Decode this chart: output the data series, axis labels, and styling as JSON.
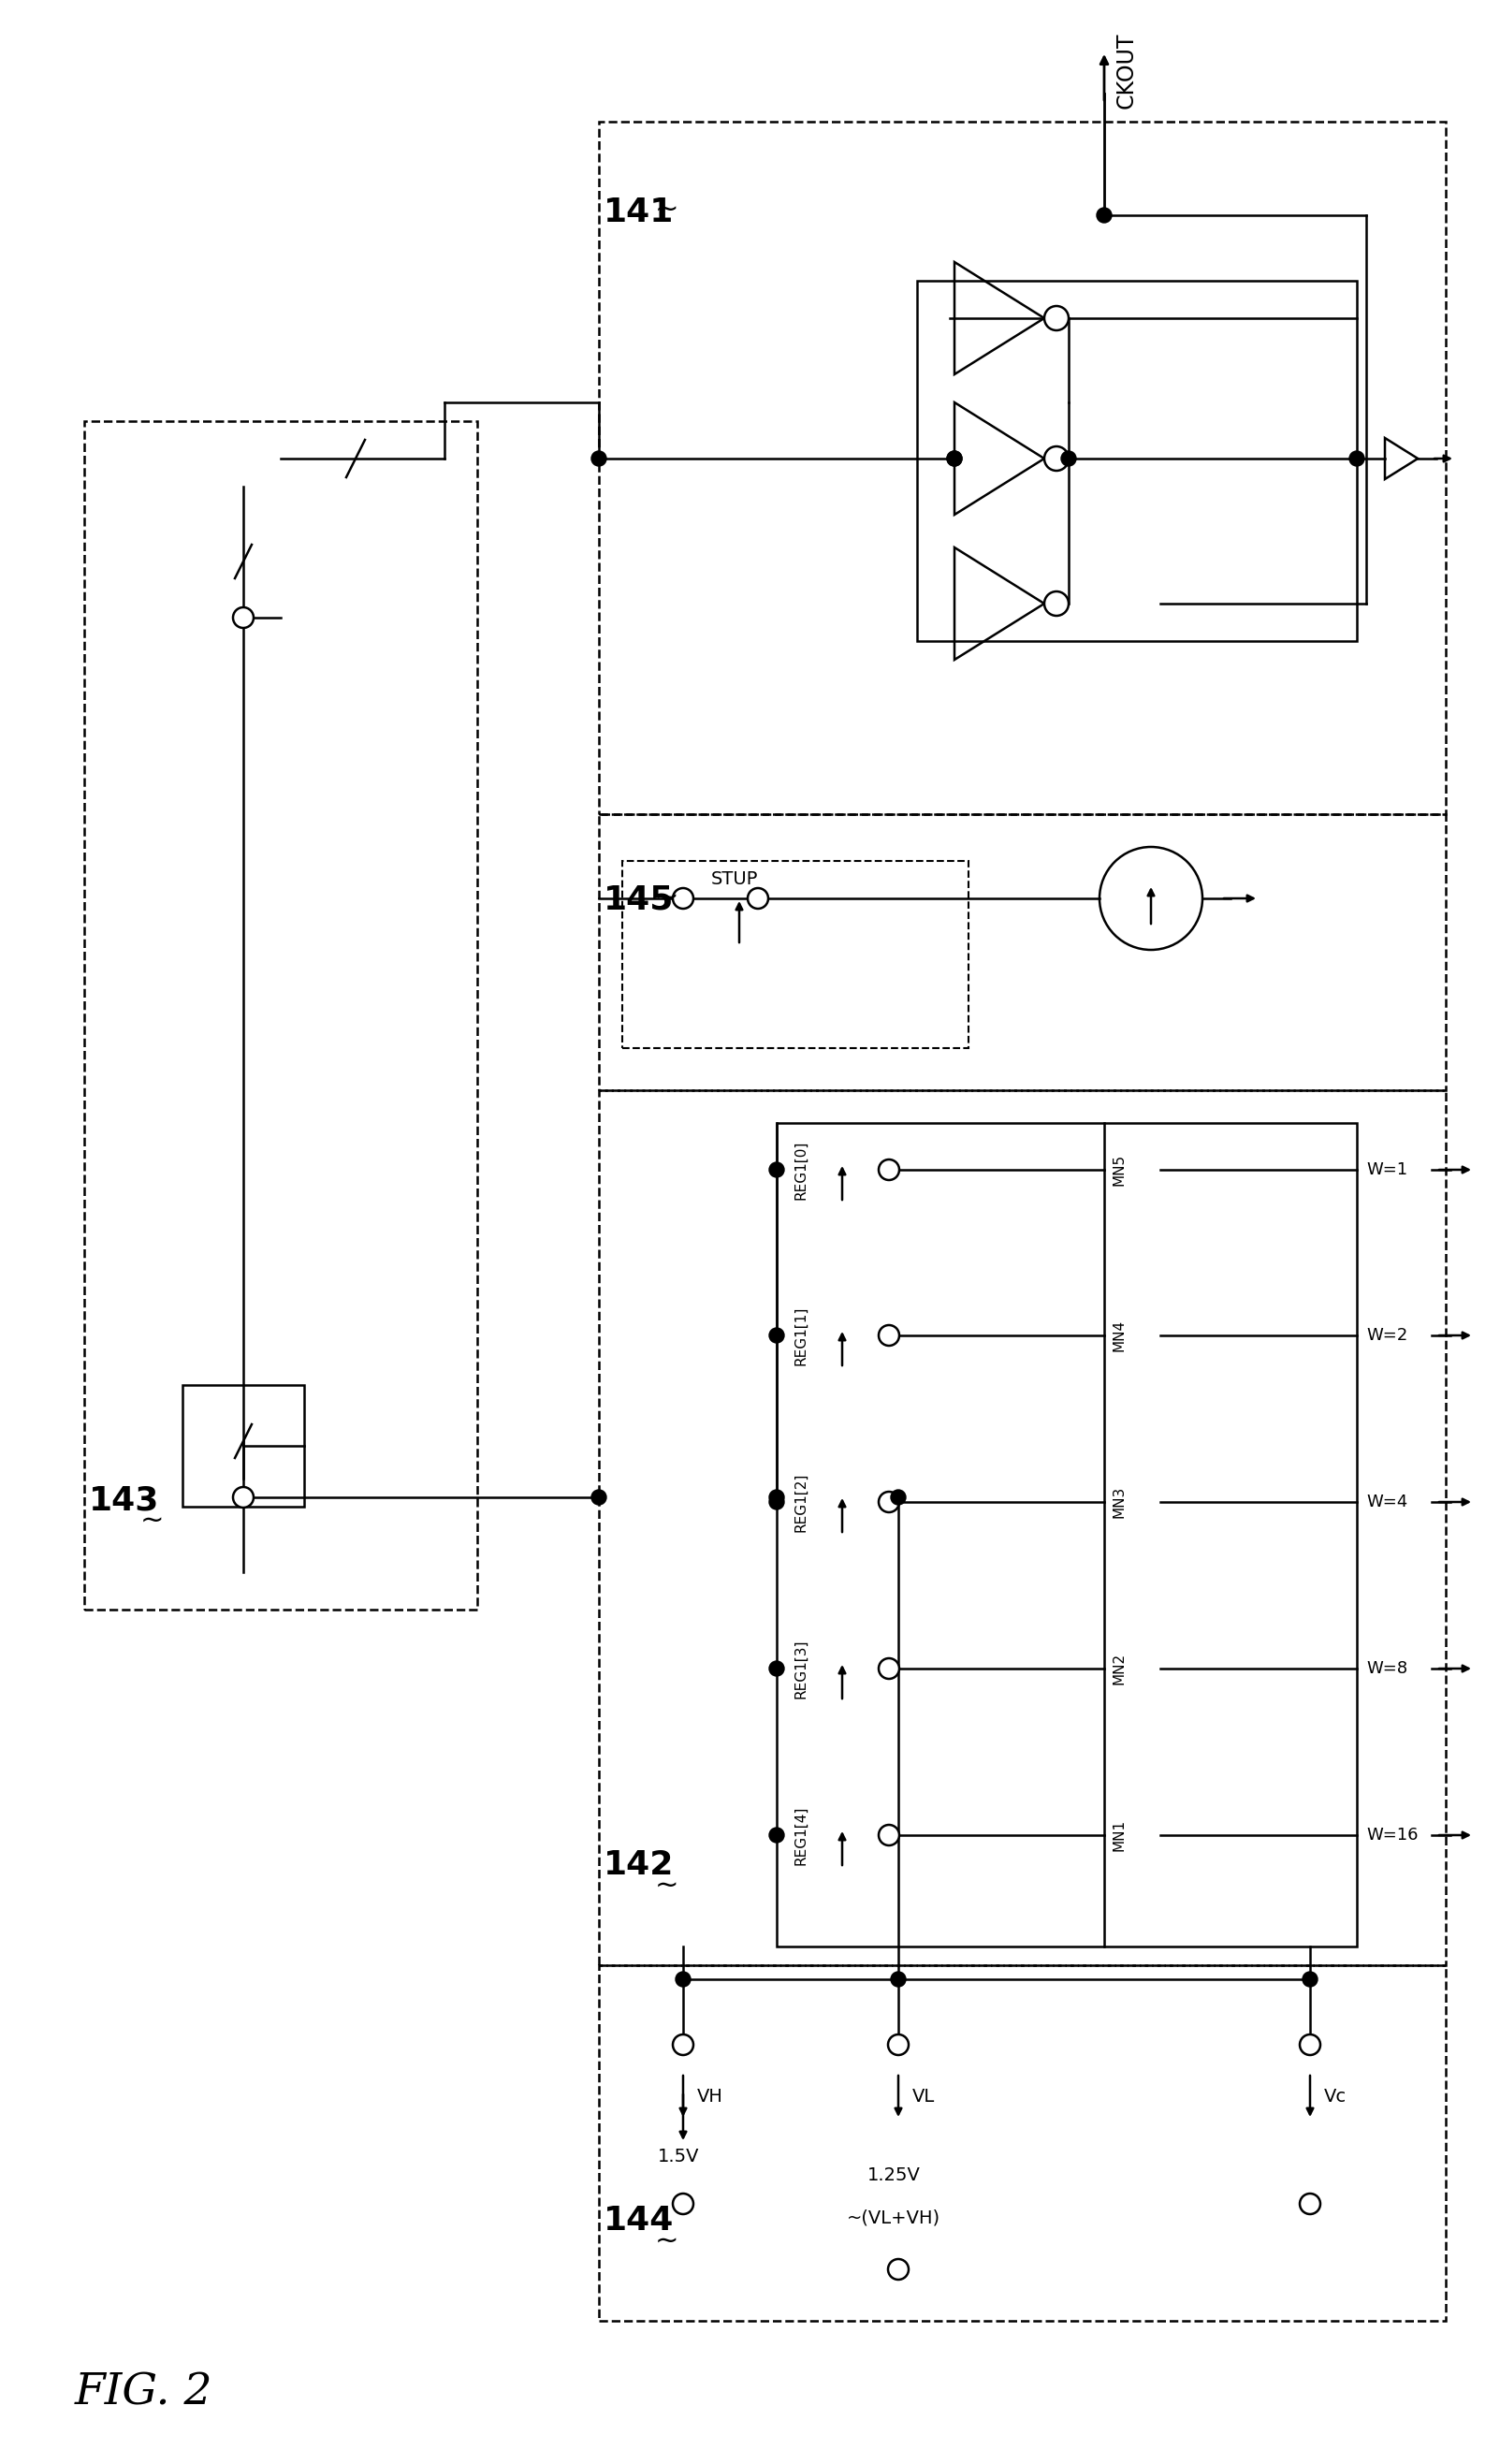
{
  "fig_label": "FIG. 2",
  "block_141_label": "141",
  "block_142_label": "142",
  "block_143_label": "143",
  "block_144_label": "144",
  "block_145_label": "145",
  "ckout_label": "CKOUT",
  "stup_label": "STUP",
  "reg_labels": [
    "REG1[0]",
    "REG1[1]",
    "REG1[2]",
    "REG1[3]",
    "REG1[4]"
  ],
  "mn_labels": [
    "MN5",
    "MN4",
    "MN3",
    "MN2",
    "MN1"
  ],
  "w_labels": [
    "W=1",
    "W=2",
    "W=4",
    "W=8",
    "W=16"
  ],
  "vh_label": "VH",
  "vl_label": "VL",
  "vc_label": "Vc",
  "v1_label": "1.5V",
  "v2_label": "1.25V",
  "v2b_label": "~(VL+VH)",
  "bg_color": "#ffffff",
  "line_color": "#000000"
}
